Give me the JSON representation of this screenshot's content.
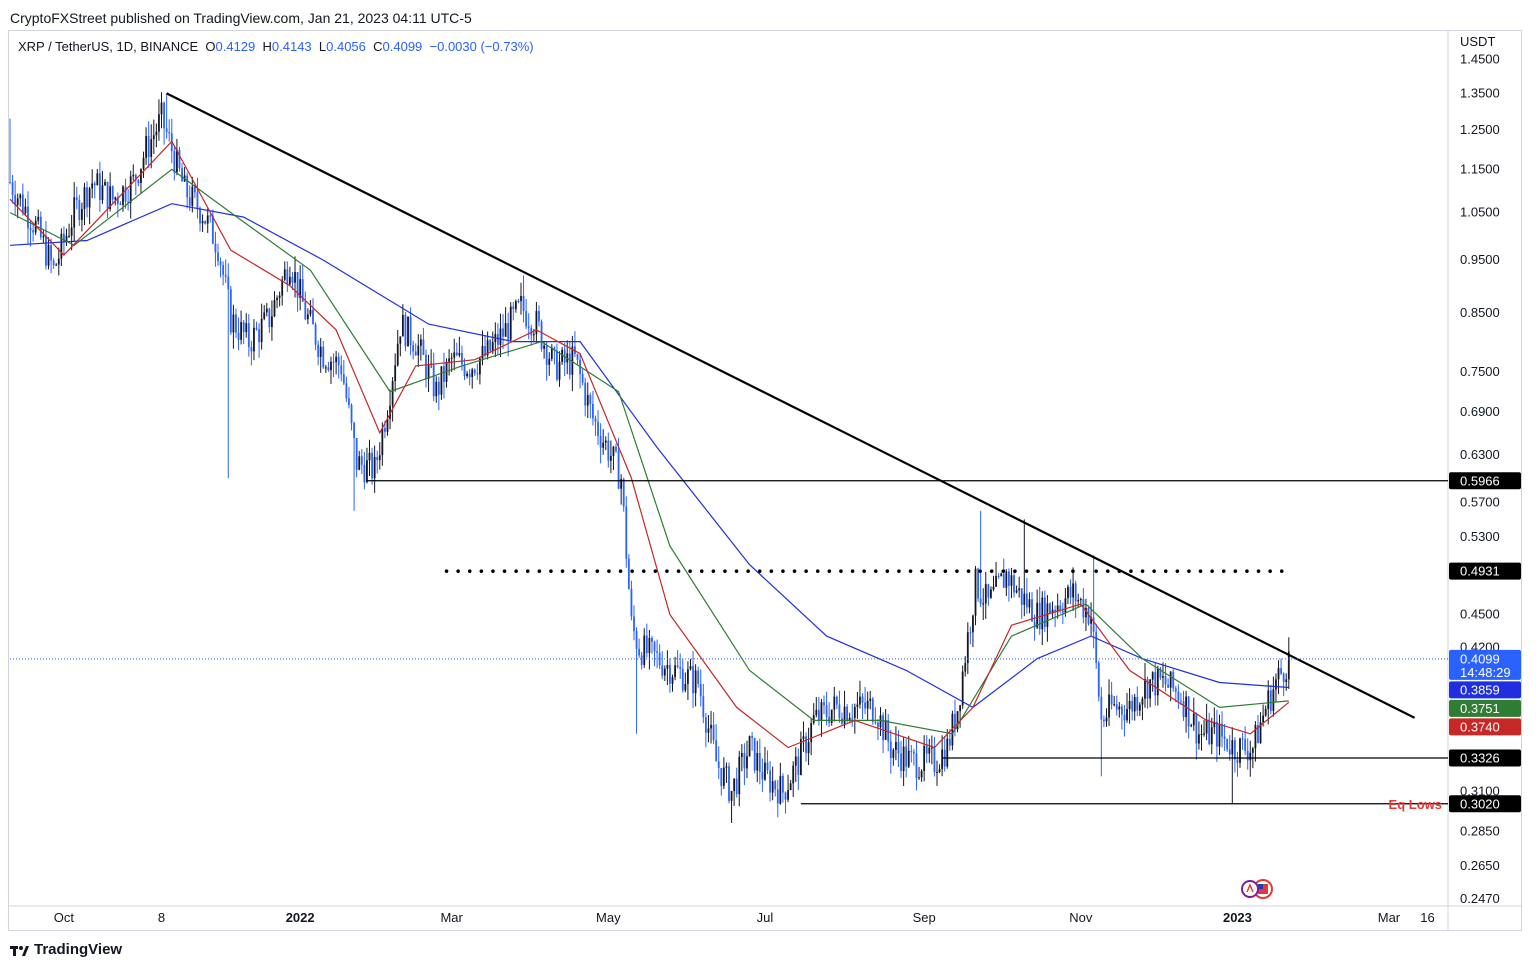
{
  "header": {
    "publisher": "CryptoFXStreet published on TradingView.com, Jan 21, 2023 04:11 UTC-5"
  },
  "legend": {
    "symbol": "XRP / TetherUS, 1D, BINANCE",
    "o_label": "O",
    "o": "0.4129",
    "h_label": "H",
    "h": "0.4143",
    "l_label": "L",
    "l": "0.4056",
    "c_label": "C",
    "c": "0.4099",
    "change": "−0.0030 (−0.73%)"
  },
  "footer": {
    "brand": "TradingView"
  },
  "colors": {
    "ema_fast": "#c62828",
    "ema_mid": "#2e7d32",
    "ema_slow": "#1f2fe0",
    "candle": "#131722",
    "candle_alt": "#2962ff",
    "price_line": "#2962ff",
    "eq_lows": "#e53935"
  },
  "chart_data": {
    "type": "candlestick",
    "currency": "USDT",
    "y_scale": "log",
    "ylim": [
      0.245,
      1.53
    ],
    "y_ticks": [
      "1.4500",
      "1.3500",
      "1.2500",
      "1.1500",
      "1.0500",
      "0.9500",
      "0.8500",
      "0.7500",
      "0.6900",
      "0.6300",
      "0.5700",
      "0.5300",
      "0.4500",
      "0.4200",
      "0.3100",
      "0.2850",
      "0.2650",
      "0.2470"
    ],
    "x_range": [
      "2021-09-10",
      "2023-03-24"
    ],
    "x_ticks": [
      {
        "label": "Oct",
        "date": "2021-10-01",
        "bold": false
      },
      {
        "label": "8",
        "date": "2021-11-08",
        "bold": false
      },
      {
        "label": "2022",
        "date": "2022-01-01",
        "bold": true
      },
      {
        "label": "Mar",
        "date": "2022-03-01",
        "bold": false
      },
      {
        "label": "May",
        "date": "2022-05-01",
        "bold": false
      },
      {
        "label": "Jul",
        "date": "2022-07-01",
        "bold": false
      },
      {
        "label": "Sep",
        "date": "2022-09-01",
        "bold": false
      },
      {
        "label": "Nov",
        "date": "2022-11-01",
        "bold": false
      },
      {
        "label": "2023",
        "date": "2023-01-01",
        "bold": true
      },
      {
        "label": "Mar",
        "date": "2023-03-01",
        "bold": false
      },
      {
        "label": "16",
        "date": "2023-03-16",
        "bold": false
      }
    ],
    "price_path": [
      [
        "2021-09-10",
        1.12
      ],
      [
        "2021-09-20",
        1.02
      ],
      [
        "2021-09-27",
        0.93
      ],
      [
        "2021-10-05",
        1.05
      ],
      [
        "2021-10-12",
        1.12
      ],
      [
        "2021-10-20",
        1.08
      ],
      [
        "2021-10-28",
        1.12
      ],
      [
        "2021-11-02",
        1.2
      ],
      [
        "2021-11-08",
        1.28
      ],
      [
        "2021-11-12",
        1.2
      ],
      [
        "2021-11-17",
        1.1
      ],
      [
        "2021-11-24",
        1.05
      ],
      [
        "2021-11-30",
        0.98
      ],
      [
        "2021-12-05",
        0.84
      ],
      [
        "2021-12-12",
        0.8
      ],
      [
        "2021-12-20",
        0.84
      ],
      [
        "2021-12-28",
        0.95
      ],
      [
        "2022-01-03",
        0.85
      ],
      [
        "2022-01-10",
        0.78
      ],
      [
        "2022-01-17",
        0.76
      ],
      [
        "2022-01-23",
        0.62
      ],
      [
        "2022-01-30",
        0.61
      ],
      [
        "2022-02-04",
        0.7
      ],
      [
        "2022-02-09",
        0.83
      ],
      [
        "2022-02-15",
        0.8
      ],
      [
        "2022-02-23",
        0.72
      ],
      [
        "2022-03-01",
        0.77
      ],
      [
        "2022-03-08",
        0.76
      ],
      [
        "2022-03-15",
        0.78
      ],
      [
        "2022-03-22",
        0.82
      ],
      [
        "2022-03-28",
        0.86
      ],
      [
        "2022-04-03",
        0.83
      ],
      [
        "2022-04-10",
        0.76
      ],
      [
        "2022-04-18",
        0.77
      ],
      [
        "2022-04-25",
        0.68
      ],
      [
        "2022-05-02",
        0.63
      ],
      [
        "2022-05-06",
        0.6
      ],
      [
        "2022-05-10",
        0.44
      ],
      [
        "2022-05-13",
        0.42
      ],
      [
        "2022-05-20",
        0.41
      ],
      [
        "2022-05-27",
        0.4
      ],
      [
        "2022-06-05",
        0.39
      ],
      [
        "2022-06-12",
        0.33
      ],
      [
        "2022-06-18",
        0.31
      ],
      [
        "2022-06-25",
        0.34
      ],
      [
        "2022-07-01",
        0.32
      ],
      [
        "2022-07-08",
        0.31
      ],
      [
        "2022-07-14",
        0.33
      ],
      [
        "2022-07-20",
        0.36
      ],
      [
        "2022-07-28",
        0.37
      ],
      [
        "2022-08-05",
        0.37
      ],
      [
        "2022-08-13",
        0.37
      ],
      [
        "2022-08-19",
        0.34
      ],
      [
        "2022-08-27",
        0.33
      ],
      [
        "2022-09-05",
        0.33
      ],
      [
        "2022-09-10",
        0.34
      ],
      [
        "2022-09-14",
        0.37
      ],
      [
        "2022-09-21",
        0.48
      ],
      [
        "2022-09-26",
        0.46
      ],
      [
        "2022-10-03",
        0.49
      ],
      [
        "2022-10-08",
        0.47
      ],
      [
        "2022-10-15",
        0.45
      ],
      [
        "2022-10-22",
        0.46
      ],
      [
        "2022-10-29",
        0.47
      ],
      [
        "2022-11-05",
        0.45
      ],
      [
        "2022-11-09",
        0.36
      ],
      [
        "2022-11-13",
        0.37
      ],
      [
        "2022-11-20",
        0.37
      ],
      [
        "2022-11-27",
        0.39
      ],
      [
        "2022-12-03",
        0.39
      ],
      [
        "2022-12-10",
        0.38
      ],
      [
        "2022-12-17",
        0.35
      ],
      [
        "2022-12-24",
        0.35
      ],
      [
        "2022-12-31",
        0.34
      ],
      [
        "2023-01-07",
        0.34
      ],
      [
        "2023-01-12",
        0.37
      ],
      [
        "2023-01-16",
        0.39
      ],
      [
        "2023-01-21",
        0.41
      ]
    ],
    "wick_extremes": [
      {
        "date": "2021-09-10",
        "high": 1.28
      },
      {
        "date": "2021-11-10",
        "high": 1.35
      },
      {
        "date": "2021-12-04",
        "low": 0.6
      },
      {
        "date": "2022-01-22",
        "low": 0.56
      },
      {
        "date": "2022-03-29",
        "high": 0.92
      },
      {
        "date": "2022-05-12",
        "low": 0.35
      },
      {
        "date": "2022-06-18",
        "low": 0.29
      },
      {
        "date": "2022-09-23",
        "high": 0.56
      },
      {
        "date": "2022-10-10",
        "high": 0.55
      },
      {
        "date": "2022-11-06",
        "high": 0.51
      },
      {
        "date": "2022-11-09",
        "low": 0.32
      },
      {
        "date": "2022-12-30",
        "low": 0.302
      }
    ],
    "ema_fast_path": [
      [
        "2021-09-10",
        1.08
      ],
      [
        "2021-10-01",
        0.96
      ],
      [
        "2021-10-20",
        1.07
      ],
      [
        "2021-11-12",
        1.22
      ],
      [
        "2021-12-05",
        0.97
      ],
      [
        "2021-12-28",
        0.9
      ],
      [
        "2022-01-15",
        0.82
      ],
      [
        "2022-02-01",
        0.66
      ],
      [
        "2022-02-15",
        0.76
      ],
      [
        "2022-03-10",
        0.77
      ],
      [
        "2022-04-03",
        0.82
      ],
      [
        "2022-04-20",
        0.78
      ],
      [
        "2022-05-10",
        0.6
      ],
      [
        "2022-05-25",
        0.45
      ],
      [
        "2022-06-20",
        0.37
      ],
      [
        "2022-07-10",
        0.34
      ],
      [
        "2022-08-05",
        0.36
      ],
      [
        "2022-09-05",
        0.34
      ],
      [
        "2022-09-20",
        0.37
      ],
      [
        "2022-10-05",
        0.44
      ],
      [
        "2022-11-01",
        0.46
      ],
      [
        "2022-11-20",
        0.4
      ],
      [
        "2022-12-20",
        0.36
      ],
      [
        "2023-01-06",
        0.35
      ],
      [
        "2023-01-21",
        0.374
      ]
    ],
    "ema_mid_path": [
      [
        "2021-09-10",
        1.05
      ],
      [
        "2021-10-05",
        0.98
      ],
      [
        "2021-11-12",
        1.15
      ],
      [
        "2021-12-05",
        1.05
      ],
      [
        "2022-01-05",
        0.93
      ],
      [
        "2022-02-05",
        0.72
      ],
      [
        "2022-03-05",
        0.76
      ],
      [
        "2022-04-05",
        0.8
      ],
      [
        "2022-05-05",
        0.72
      ],
      [
        "2022-05-25",
        0.52
      ],
      [
        "2022-06-25",
        0.4
      ],
      [
        "2022-07-20",
        0.36
      ],
      [
        "2022-08-15",
        0.36
      ],
      [
        "2022-09-12",
        0.35
      ],
      [
        "2022-10-05",
        0.43
      ],
      [
        "2022-11-03",
        0.46
      ],
      [
        "2022-11-25",
        0.41
      ],
      [
        "2022-12-25",
        0.37
      ],
      [
        "2023-01-21",
        0.3751
      ]
    ],
    "ema_slow_path": [
      [
        "2021-09-10",
        0.98
      ],
      [
        "2021-10-10",
        0.99
      ],
      [
        "2021-11-12",
        1.07
      ],
      [
        "2021-12-10",
        1.04
      ],
      [
        "2022-01-10",
        0.95
      ],
      [
        "2022-02-20",
        0.83
      ],
      [
        "2022-03-25",
        0.8
      ],
      [
        "2022-04-20",
        0.8
      ],
      [
        "2022-05-20",
        0.64
      ],
      [
        "2022-06-25",
        0.5
      ],
      [
        "2022-07-25",
        0.43
      ],
      [
        "2022-08-25",
        0.4
      ],
      [
        "2022-09-20",
        0.37
      ],
      [
        "2022-10-15",
        0.41
      ],
      [
        "2022-11-05",
        0.43
      ],
      [
        "2022-11-25",
        0.41
      ],
      [
        "2022-12-25",
        0.39
      ],
      [
        "2023-01-21",
        0.3859
      ]
    ],
    "trendline": {
      "from": [
        "2021-11-10",
        1.35
      ],
      "to": [
        "2023-03-11",
        0.362
      ]
    },
    "horizontals": [
      {
        "name": "level-0-5966",
        "from": "2022-01-27",
        "value": 0.5966,
        "label": "0.5966"
      },
      {
        "name": "level-0-3326",
        "from": "2022-09-08",
        "value": 0.3326,
        "label": "0.3326"
      },
      {
        "name": "level-0-3020",
        "from": "2022-07-15",
        "value": 0.302,
        "label": "0.3020",
        "note": "Eq Lows"
      }
    ],
    "dotted_level": {
      "from": "2022-02-27",
      "to": "2023-01-21",
      "value": 0.4931,
      "label": "0.4931"
    },
    "price_labels": [
      {
        "name": "last-price",
        "value": "0.4099",
        "countdown": "14:48:29",
        "price": 0.4099
      },
      {
        "name": "ema-slow-value",
        "value": "0.3859",
        "price": 0.3859
      },
      {
        "name": "ema-mid-value",
        "value": "0.3751",
        "price": 0.3751
      },
      {
        "name": "ema-fast-value",
        "value": "0.3740",
        "price": 0.374
      }
    ]
  }
}
